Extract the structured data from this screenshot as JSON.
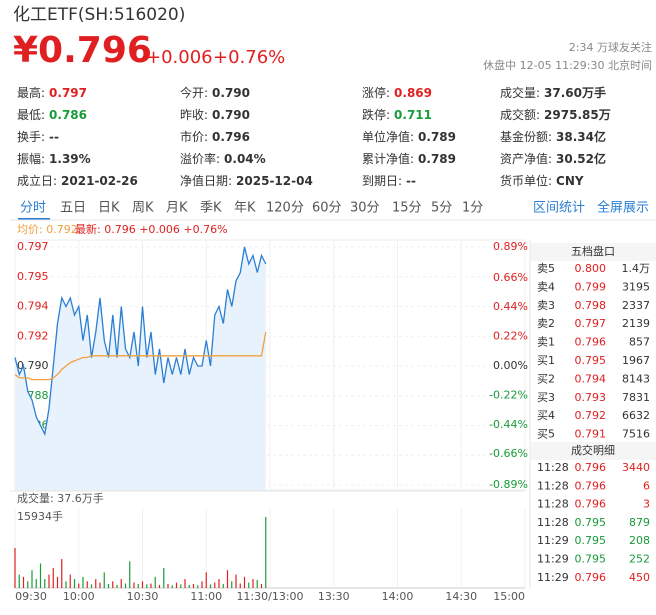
{
  "header": {
    "title": "化工ETF(SH:516020)",
    "price": "¥0.796",
    "change": "+0.006",
    "change_pct": "+0.76%",
    "followers": "2:34 万球友关注",
    "status": "休盘中 12-05 11:29:30 北京时间"
  },
  "stats": [
    [
      {
        "label": "最高:",
        "value": "0.797",
        "color": "#e02020"
      },
      {
        "label": "今开:",
        "value": "0.790"
      },
      {
        "label": "涨停:",
        "value": "0.869",
        "color": "#e02020"
      },
      {
        "label": "成交量:",
        "value": "37.60万手"
      }
    ],
    [
      {
        "label": "最低:",
        "value": "0.786",
        "color": "#1a9b3a"
      },
      {
        "label": "昨收:",
        "value": "0.790"
      },
      {
        "label": "跌停:",
        "value": "0.711",
        "color": "#1a9b3a"
      },
      {
        "label": "成交额:",
        "value": "2975.85万"
      }
    ],
    [
      {
        "label": "换手:",
        "value": "--"
      },
      {
        "label": "市价:",
        "value": "0.796"
      },
      {
        "label": "单位净值:",
        "value": "0.789"
      },
      {
        "label": "基金份额:",
        "value": "38.34亿"
      }
    ],
    [
      {
        "label": "振幅:",
        "value": "1.39%"
      },
      {
        "label": "溢价率:",
        "value": "0.04%"
      },
      {
        "label": "累计净值:",
        "value": "0.789"
      },
      {
        "label": "资产净值:",
        "value": "30.52亿"
      }
    ],
    [
      {
        "label": "成立日:",
        "value": "2021-02-26"
      },
      {
        "label": "净值日期:",
        "value": "2025-12-04"
      },
      {
        "label": "到期日:",
        "value": "--"
      },
      {
        "label": "货币单位:",
        "value": "CNY"
      }
    ]
  ],
  "tabs": [
    "分时",
    "五日",
    "日K",
    "周K",
    "月K",
    "季K",
    "年K",
    "120分",
    "60分",
    "30分",
    "15分",
    "5分",
    "1分"
  ],
  "tab_actions": [
    "区间统计",
    "全屏展示"
  ],
  "order_book": {
    "title": "五档盘口",
    "rows": [
      [
        "卖5",
        "0.800",
        "1.4万"
      ],
      [
        "卖4",
        "0.799",
        "3195"
      ],
      [
        "卖3",
        "0.798",
        "2337"
      ],
      [
        "卖2",
        "0.797",
        "2139"
      ],
      [
        "卖1",
        "0.796",
        "857"
      ],
      [
        "买1",
        "0.795",
        "1967"
      ],
      [
        "买2",
        "0.794",
        "8143"
      ],
      [
        "买3",
        "0.793",
        "7831"
      ],
      [
        "买4",
        "0.792",
        "6632"
      ],
      [
        "买5",
        "0.791",
        "7516"
      ]
    ]
  },
  "trades": {
    "title": "成交明细",
    "rows": [
      {
        "time": "11:28",
        "price": "0.796",
        "volume": "3440",
        "color": "#e02020"
      },
      {
        "time": "11:28",
        "price": "0.796",
        "volume": "6",
        "color": "#e02020"
      },
      {
        "time": "11:28",
        "price": "0.796",
        "volume": "3",
        "color": "#e02020"
      },
      {
        "time": "11:28",
        "price": "0.795",
        "volume": "879",
        "color": "#1a9b3a"
      },
      {
        "time": "11:29",
        "price": "0.795",
        "volume": "208",
        "color": "#1a9b3a"
      },
      {
        "time": "11:29",
        "price": "0.795",
        "volume": "252",
        "color": "#1a9b3a"
      },
      {
        "time": "11:29",
        "price": "0.796",
        "volume": "450",
        "color": "#e02020"
      }
    ]
  },
  "chart_data": [
    {
      "type": "line",
      "grid": true,
      "xlim": [
        0,
        240
      ],
      "ylim": [
        0.783,
        0.797
      ],
      "yticks": [
        {
          "value": 0.797,
          "label": "0.797"
        },
        {
          "value": 0.79525,
          "label": "0.795"
        },
        {
          "value": 0.7935,
          "label": "0.794"
        },
        {
          "value": 0.79175,
          "label": "0.792"
        },
        {
          "value": 0.79,
          "label": "0.790"
        },
        {
          "value": 0.78825,
          "label": "0.788"
        },
        {
          "value": 0.78649,
          "label": "0.786"
        },
        {
          "value": 0.78475,
          "label": "0.785"
        },
        {
          "value": 0.783,
          "label": "0.783"
        }
      ],
      "y2lim": [
        -0.89,
        0.89
      ],
      "y2ticks": [
        {
          "value": 0.89,
          "label": "0.89%"
        },
        {
          "value": 0.66,
          "label": "0.66%"
        },
        {
          "value": 0.44,
          "label": "0.44%"
        },
        {
          "value": 0.22,
          "label": "0.22%"
        },
        {
          "value": 0,
          "label": "0.00%"
        },
        {
          "value": -0.22,
          "label": "-0.22%"
        },
        {
          "value": -0.44,
          "label": "-0.44%"
        },
        {
          "value": -0.66,
          "label": "-0.66%"
        },
        {
          "value": -0.89,
          "label": "-0.89%"
        }
      ],
      "up_color": "#e02020",
      "down_color": "#1a9b3a",
      "x": [
        0,
        2,
        4,
        6,
        8,
        10,
        12,
        14,
        16,
        18,
        20,
        22,
        24,
        26,
        28,
        30,
        32,
        34,
        36,
        38,
        40,
        42,
        44,
        46,
        48,
        50,
        52,
        54,
        56,
        58,
        60,
        62,
        64,
        66,
        68,
        70,
        72,
        74,
        76,
        78,
        80,
        82,
        84,
        86,
        88,
        90,
        92,
        94,
        96,
        98,
        100,
        102,
        104,
        106,
        108,
        110,
        112,
        114,
        116,
        118
      ],
      "series": [
        {
          "name": "均价: 0.792",
          "color": "#f0a040",
          "values": [
            0.7895,
            0.7893,
            0.7893,
            0.7893,
            0.7892,
            0.7892,
            0.7892,
            0.7892,
            0.7892,
            0.7893,
            0.7895,
            0.7898,
            0.79,
            0.7902,
            0.7903,
            0.7904,
            0.7905,
            0.7905,
            0.7906,
            0.7906,
            0.7906,
            0.7906,
            0.7906,
            0.7906,
            0.7906,
            0.7906,
            0.7906,
            0.7906,
            0.7906,
            0.7906,
            0.7906,
            0.7906,
            0.7906,
            0.7906,
            0.7906,
            0.7906,
            0.7906,
            0.7906,
            0.7906,
            0.7906,
            0.7906,
            0.7906,
            0.7906,
            0.7906,
            0.7906,
            0.7906,
            0.7906,
            0.7906,
            0.7906,
            0.7906,
            0.7906,
            0.7906,
            0.7906,
            0.7906,
            0.7906,
            0.7906,
            0.7906,
            0.7906,
            0.7906,
            0.792
          ]
        },
        {
          "name": "最新: 0.796 +0.006 +0.76%",
          "color": "#2a7fd4",
          "values": [
            0.7905,
            0.7895,
            0.79,
            0.7885,
            0.788,
            0.787,
            0.7865,
            0.786,
            0.7875,
            0.79,
            0.7925,
            0.794,
            0.7935,
            0.794,
            0.793,
            0.7935,
            0.7915,
            0.793,
            0.7905,
            0.792,
            0.794,
            0.7915,
            0.7905,
            0.793,
            0.7905,
            0.7935,
            0.791,
            0.7905,
            0.792,
            0.79,
            0.7935,
            0.7905,
            0.792,
            0.7895,
            0.791,
            0.789,
            0.7905,
            0.7895,
            0.7905,
            0.7895,
            0.791,
            0.7895,
            0.7905,
            0.79,
            0.79,
            0.7915,
            0.79,
            0.793,
            0.7935,
            0.7925,
            0.7945,
            0.7935,
            0.795,
            0.7955,
            0.797,
            0.796,
            0.7965,
            0.7955,
            0.7965,
            0.796
          ]
        }
      ]
    },
    {
      "type": "bar",
      "title": "成交量: 37.6万手",
      "xlim": [
        0,
        240
      ],
      "xticks": [
        {
          "value": 0,
          "label": "09:30"
        },
        {
          "value": 30,
          "label": "10:00"
        },
        {
          "value": 60,
          "label": "10:30"
        },
        {
          "value": 90,
          "label": "11:00"
        },
        {
          "value": 120,
          "label": "11:30/13:00"
        },
        {
          "value": 150,
          "label": "13:30"
        },
        {
          "value": 180,
          "label": "14:00"
        },
        {
          "value": 210,
          "label": "14:30"
        },
        {
          "value": 240,
          "label": "15:00"
        }
      ],
      "ylim": [
        0,
        15934
      ],
      "yticks": [
        {
          "value": 15934,
          "label": "15934手"
        }
      ],
      "x": [
        0,
        2,
        4,
        6,
        8,
        10,
        12,
        14,
        16,
        18,
        20,
        22,
        24,
        26,
        28,
        30,
        32,
        34,
        36,
        38,
        40,
        42,
        44,
        46,
        48,
        50,
        52,
        54,
        56,
        58,
        60,
        62,
        64,
        66,
        68,
        70,
        72,
        74,
        76,
        78,
        80,
        82,
        84,
        86,
        88,
        90,
        92,
        94,
        96,
        98,
        100,
        102,
        104,
        106,
        108,
        110,
        112,
        114,
        116,
        118
      ],
      "values": [
        9000,
        3000,
        2500,
        1500,
        4000,
        2000,
        5500,
        2000,
        3000,
        4500,
        2500,
        6500,
        1500,
        3000,
        2000,
        1000,
        2500,
        1500,
        800,
        2000,
        1200,
        3500,
        900,
        1500,
        700,
        2000,
        1000,
        6000,
        1200,
        900,
        1500,
        800,
        1000,
        2500,
        700,
        4500,
        900,
        600,
        1200,
        800,
        2000,
        700,
        900,
        600,
        1500,
        3500,
        800,
        1200,
        2000,
        900,
        4000,
        1500,
        3000,
        1000,
        2500,
        1200,
        2000,
        1800,
        900,
        15934
      ]
    }
  ]
}
